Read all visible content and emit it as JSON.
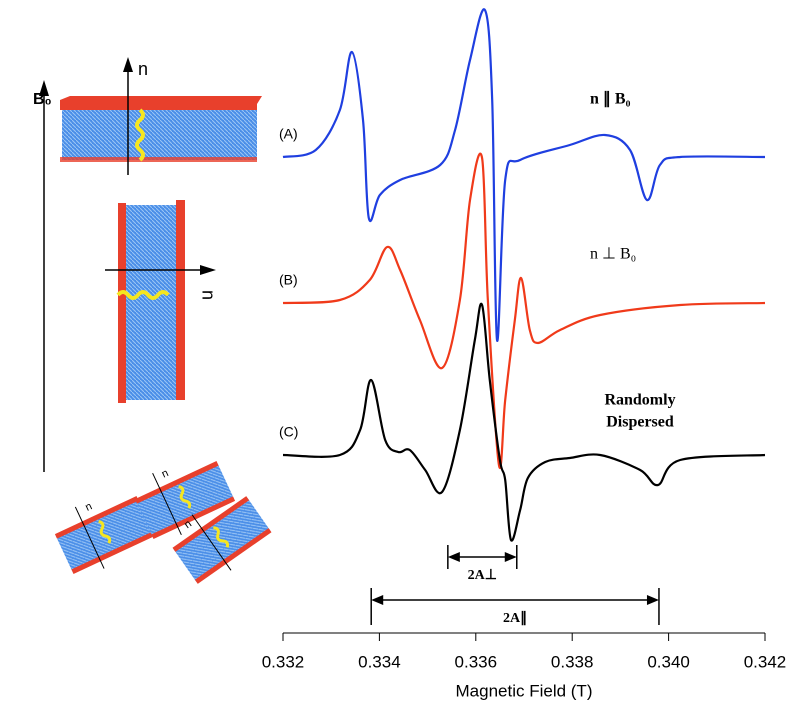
{
  "chart_data": {
    "type": "line",
    "x_label": "Magnetic Field (T)",
    "xlim": [
      0.332,
      0.342
    ],
    "xticks": [
      0.332,
      0.334,
      0.336,
      0.338,
      {
        "value": 0.34,
        "label": "0.340"
      },
      0.342
    ],
    "ylim": [
      0,
      620
    ],
    "series": [
      {
        "name": "(A)",
        "color": "#1f3fe0",
        "x": [
          0.332,
          0.33268,
          0.33318,
          0.33343,
          0.33366,
          0.33378,
          0.33401,
          0.33443,
          0.33526,
          0.33557,
          0.33588,
          0.33619,
          0.33634,
          0.33644,
          0.33661,
          0.33692,
          0.33795,
          0.33868,
          0.3392,
          0.33955,
          0.33982,
          0.34024,
          0.342
        ],
        "values": [
          463,
          470,
          510,
          568,
          500,
          402,
          425,
          440,
          455,
          490,
          560,
          610,
          520,
          280,
          440,
          460,
          475,
          485,
          470,
          420,
          455,
          463,
          463
        ]
      },
      {
        "name": "(B)",
        "color": "#f03a1a",
        "x": [
          0.332,
          0.33318,
          0.3338,
          0.33416,
          0.33443,
          0.33484,
          0.3353,
          0.33567,
          0.33588,
          0.33613,
          0.33625,
          0.33648,
          0.33661,
          0.33681,
          0.33694,
          0.33712,
          0.33729,
          0.33775,
          0.33858,
          0.34024,
          0.342
        ],
        "values": [
          317,
          320,
          340,
          373,
          350,
          300,
          252,
          320,
          420,
          462,
          320,
          155,
          220,
          300,
          342,
          290,
          277,
          290,
          305,
          315,
          317
        ]
      },
      {
        "name": "(C)",
        "color": "#000000",
        "x": [
          0.332,
          0.33318,
          0.3336,
          0.33383,
          0.33412,
          0.33439,
          0.33463,
          0.33495,
          0.3353,
          0.33567,
          0.33598,
          0.33613,
          0.33629,
          0.3365,
          0.33661,
          0.33673,
          0.33692,
          0.33708,
          0.33744,
          0.33795,
          0.33858,
          0.33941,
          0.33978,
          0.34024,
          0.342
        ],
        "values": [
          165,
          165,
          190,
          240,
          180,
          168,
          170,
          150,
          128,
          190,
          280,
          315,
          240,
          160,
          140,
          80,
          110,
          142,
          158,
          162,
          165,
          150,
          135,
          160,
          165
        ]
      }
    ],
    "annotations": {
      "parallel": "n ∥ B₀",
      "perpendicular": "n ⊥ B₀",
      "random": [
        "Randomly",
        "Dispersed"
      ]
    },
    "spans": [
      {
        "label": "2A⊥",
        "range": [
          0.33542,
          0.33685
        ]
      },
      {
        "label": "2A∥",
        "range": [
          0.33383,
          0.3398
        ]
      }
    ],
    "illustration": {
      "field_label": "B₀",
      "normal_labels": [
        "n",
        "n",
        "n",
        "n",
        "n"
      ]
    }
  }
}
